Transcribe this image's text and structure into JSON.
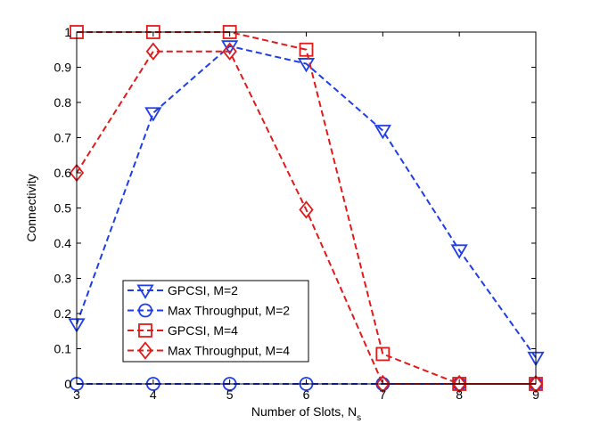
{
  "chart_data": {
    "type": "line",
    "title": "",
    "xlabel": "Number of Slots, N",
    "xlabel_subscript": "s",
    "ylabel": "Connectivity",
    "xlim": [
      3,
      9
    ],
    "ylim": [
      0,
      1
    ],
    "x_ticks": [
      "3",
      "4",
      "5",
      "6",
      "7",
      "8",
      "9"
    ],
    "y_ticks": [
      "0",
      "0.1",
      "0.2",
      "0.3",
      "0.4",
      "0.5",
      "0.6",
      "0.7",
      "0.8",
      "0.9",
      "1"
    ],
    "x": [
      3,
      4,
      5,
      6,
      7,
      8,
      9
    ],
    "grid": false,
    "legend_position": "lower-left",
    "series": [
      {
        "name": "GPCSI, M=2",
        "color": "#1f3de8",
        "marker": "triangle-down",
        "line": "dashed",
        "values": [
          0.17,
          0.77,
          0.96,
          0.91,
          0.72,
          0.38,
          0.075
        ]
      },
      {
        "name": "Max Throughput, M=2",
        "color": "#1f3de8",
        "marker": "circle",
        "line": "dashed",
        "values": [
          0,
          0,
          0,
          0,
          0,
          0,
          0
        ]
      },
      {
        "name": "GPCSI, M=4",
        "color": "#e01b1b",
        "marker": "square",
        "line": "dashed",
        "values": [
          1,
          1,
          1,
          0.95,
          0.085,
          0,
          0
        ]
      },
      {
        "name": "Max Throughput, M=4",
        "color": "#e01b1b",
        "marker": "diamond",
        "line": "dashed",
        "values": [
          0.6,
          0.945,
          0.945,
          0.495,
          0,
          0,
          0
        ]
      }
    ]
  }
}
